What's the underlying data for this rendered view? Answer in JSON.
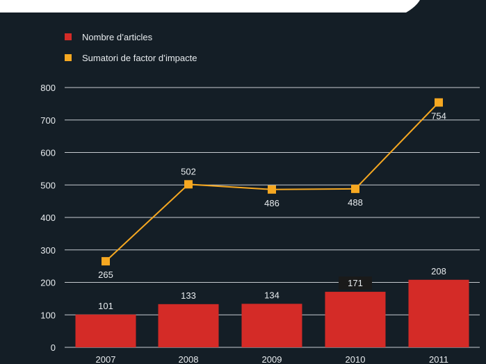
{
  "colors": {
    "background": "#141e26",
    "gridline": "#c7ccd1",
    "bar": "#d42b27",
    "line": "#f6a821",
    "text": "#e8ecef",
    "label_bg": "#1a1a1a"
  },
  "chart_data": {
    "type": "bar",
    "categories": [
      "2007",
      "2008",
      "2009",
      "2010",
      "2011"
    ],
    "series": [
      {
        "name": "Nombre d’articles",
        "type": "bar",
        "color": "#d42b27",
        "values": [
          101,
          133,
          134,
          171,
          208
        ]
      },
      {
        "name": "Sumatori de factor d’impacte",
        "type": "line",
        "color": "#f6a821",
        "values": [
          265,
          502,
          486,
          488,
          754
        ]
      }
    ],
    "y_ticks": [
      "0",
      "100",
      "200",
      "300",
      "400",
      "500",
      "600",
      "700",
      "800"
    ],
    "ylim": [
      0,
      800
    ],
    "grid": true,
    "legend_position": "top-left"
  }
}
